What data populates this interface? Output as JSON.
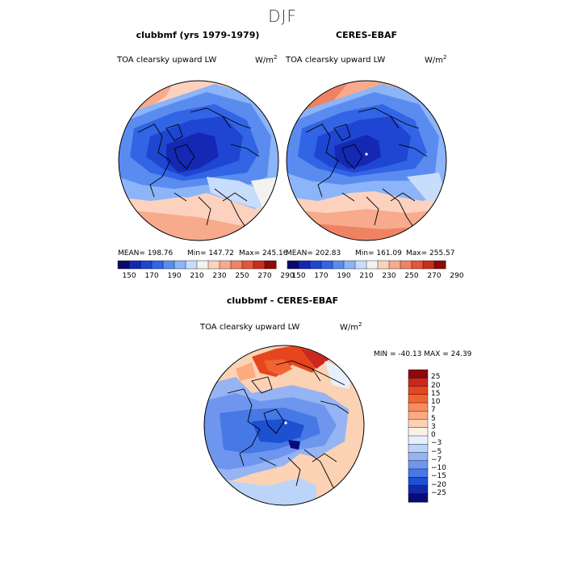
{
  "figure": {
    "season": "DJF",
    "panels": [
      {
        "id": "model",
        "title": "clubbmf (yrs 1979-1979)",
        "variable": "TOA clearsky upward LW",
        "units": "W/m",
        "units_exp": "2",
        "mean_text": "MEAN= 198.76",
        "min_text": "Min= 147.72",
        "max_text": "Max= 245.16"
      },
      {
        "id": "obs",
        "title": "CERES-EBAF",
        "variable": "TOA clearsky upward LW",
        "units": "W/m",
        "units_exp": "2",
        "mean_text": "MEAN= 202.83",
        "min_text": "Min= 161.09",
        "max_text": "Max= 255.57"
      },
      {
        "id": "diff",
        "title": "clubbmf - CERES-EBAF",
        "variable": "TOA clearsky upward LW",
        "units": "W/m",
        "units_exp": "2",
        "minmax_text": "MIN = -40.13 MAX =  24.39"
      }
    ],
    "colorbar_main": {
      "labels": [
        "150",
        "170",
        "190",
        "210",
        "230",
        "250",
        "270",
        "290"
      ],
      "colors": [
        "#0a0a6e",
        "#1428b4",
        "#1e46d2",
        "#3264e6",
        "#5a8cf0",
        "#8cb4f8",
        "#c8dcfc",
        "#f2f2ee",
        "#fcd2be",
        "#f8aa8c",
        "#f08264",
        "#e6553c",
        "#c82d1e",
        "#8c0a0a"
      ]
    },
    "colorbar_diff": {
      "labels": [
        "25",
        "20",
        "15",
        "10",
        "7",
        "5",
        "3",
        "0",
        "−3",
        "−5",
        "−7",
        "−10",
        "−15",
        "−20",
        "−25"
      ],
      "colors": [
        "#8c0a0a",
        "#c8281e",
        "#e6461e",
        "#f06432",
        "#f88c5a",
        "#fcaa82",
        "#fcd2b4",
        "#fcf0e6",
        "#e6f0fc",
        "#bcd4f8",
        "#96b4f4",
        "#6e96ee",
        "#4678e6",
        "#1e50d2",
        "#1428aa",
        "#0a0a7a"
      ]
    }
  }
}
